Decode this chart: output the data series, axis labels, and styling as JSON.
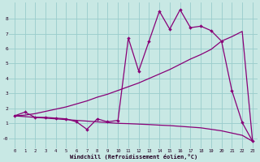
{
  "bg_color": "#c8e8e4",
  "grid_color": "#99cccc",
  "line_color": "#880077",
  "xlabel": "Windchill (Refroidissement éolien,°C)",
  "xlim": [
    -0.5,
    23.5
  ],
  "ylim": [
    -0.65,
    9.1
  ],
  "xticks": [
    0,
    1,
    2,
    3,
    4,
    5,
    6,
    7,
    8,
    9,
    10,
    11,
    12,
    13,
    14,
    15,
    16,
    17,
    18,
    19,
    20,
    21,
    22,
    23
  ],
  "yticks": [
    0,
    1,
    2,
    3,
    4,
    5,
    6,
    7,
    8
  ],
  "ytick_labels": [
    "-0",
    "1",
    "2",
    "3",
    "4",
    "5",
    "6",
    "7",
    "8"
  ],
  "line1_x": [
    0,
    1,
    2,
    3,
    4,
    5,
    6,
    7,
    8,
    9,
    10,
    11,
    12,
    13,
    14,
    15,
    16,
    17,
    18,
    19,
    20,
    21,
    22,
    23
  ],
  "line1_y": [
    1.5,
    1.75,
    1.4,
    1.4,
    1.35,
    1.3,
    1.1,
    0.6,
    1.3,
    1.1,
    1.2,
    6.7,
    4.5,
    6.5,
    8.5,
    7.3,
    8.6,
    7.4,
    7.5,
    7.2,
    6.5,
    3.2,
    1.05,
    -0.2
  ],
  "line2_x": [
    0,
    1,
    2,
    3,
    4,
    5,
    6,
    7,
    8,
    9,
    10,
    11,
    12,
    13,
    14,
    15,
    16,
    17,
    18,
    19,
    20,
    21,
    22,
    23
  ],
  "line2_y": [
    1.5,
    1.55,
    1.65,
    1.8,
    1.95,
    2.1,
    2.3,
    2.5,
    2.75,
    2.95,
    3.2,
    3.45,
    3.7,
    4.0,
    4.3,
    4.6,
    4.95,
    5.3,
    5.6,
    5.95,
    6.5,
    6.8,
    7.15,
    -0.2
  ],
  "line3_x": [
    0,
    1,
    2,
    3,
    4,
    5,
    6,
    7,
    8,
    9,
    10,
    11,
    12,
    13,
    14,
    15,
    16,
    17,
    18,
    19,
    20,
    21,
    22,
    23
  ],
  "line3_y": [
    1.5,
    1.45,
    1.4,
    1.35,
    1.3,
    1.25,
    1.2,
    1.15,
    1.1,
    1.05,
    1.0,
    0.98,
    0.95,
    0.92,
    0.88,
    0.85,
    0.8,
    0.75,
    0.7,
    0.6,
    0.5,
    0.35,
    0.2,
    -0.2
  ]
}
